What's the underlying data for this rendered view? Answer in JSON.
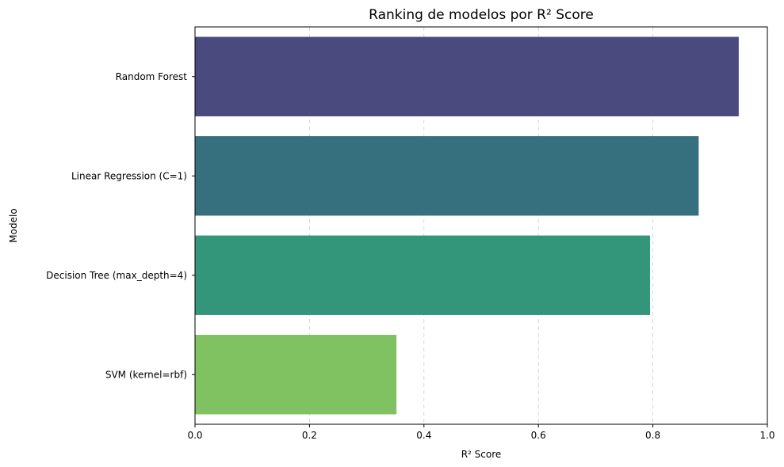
{
  "chart_data": {
    "type": "bar",
    "orientation": "horizontal",
    "title": "Ranking de modelos por R² Score",
    "xlabel": "R² Score",
    "ylabel": "Modelo",
    "xlim": [
      0,
      1.0
    ],
    "xticks": [
      "0.0",
      "0.2",
      "0.4",
      "0.6",
      "0.8",
      "1.0"
    ],
    "grid": "x-dashed",
    "categories": [
      "Random Forest",
      "Linear Regression (C=1)",
      "Decision Tree (max_depth=4)",
      "SVM (kernel=rbf)"
    ],
    "values": [
      0.95,
      0.88,
      0.795,
      0.352
    ],
    "colors": [
      "#4a4a7e",
      "#366f7d",
      "#33967b",
      "#80c161"
    ]
  }
}
